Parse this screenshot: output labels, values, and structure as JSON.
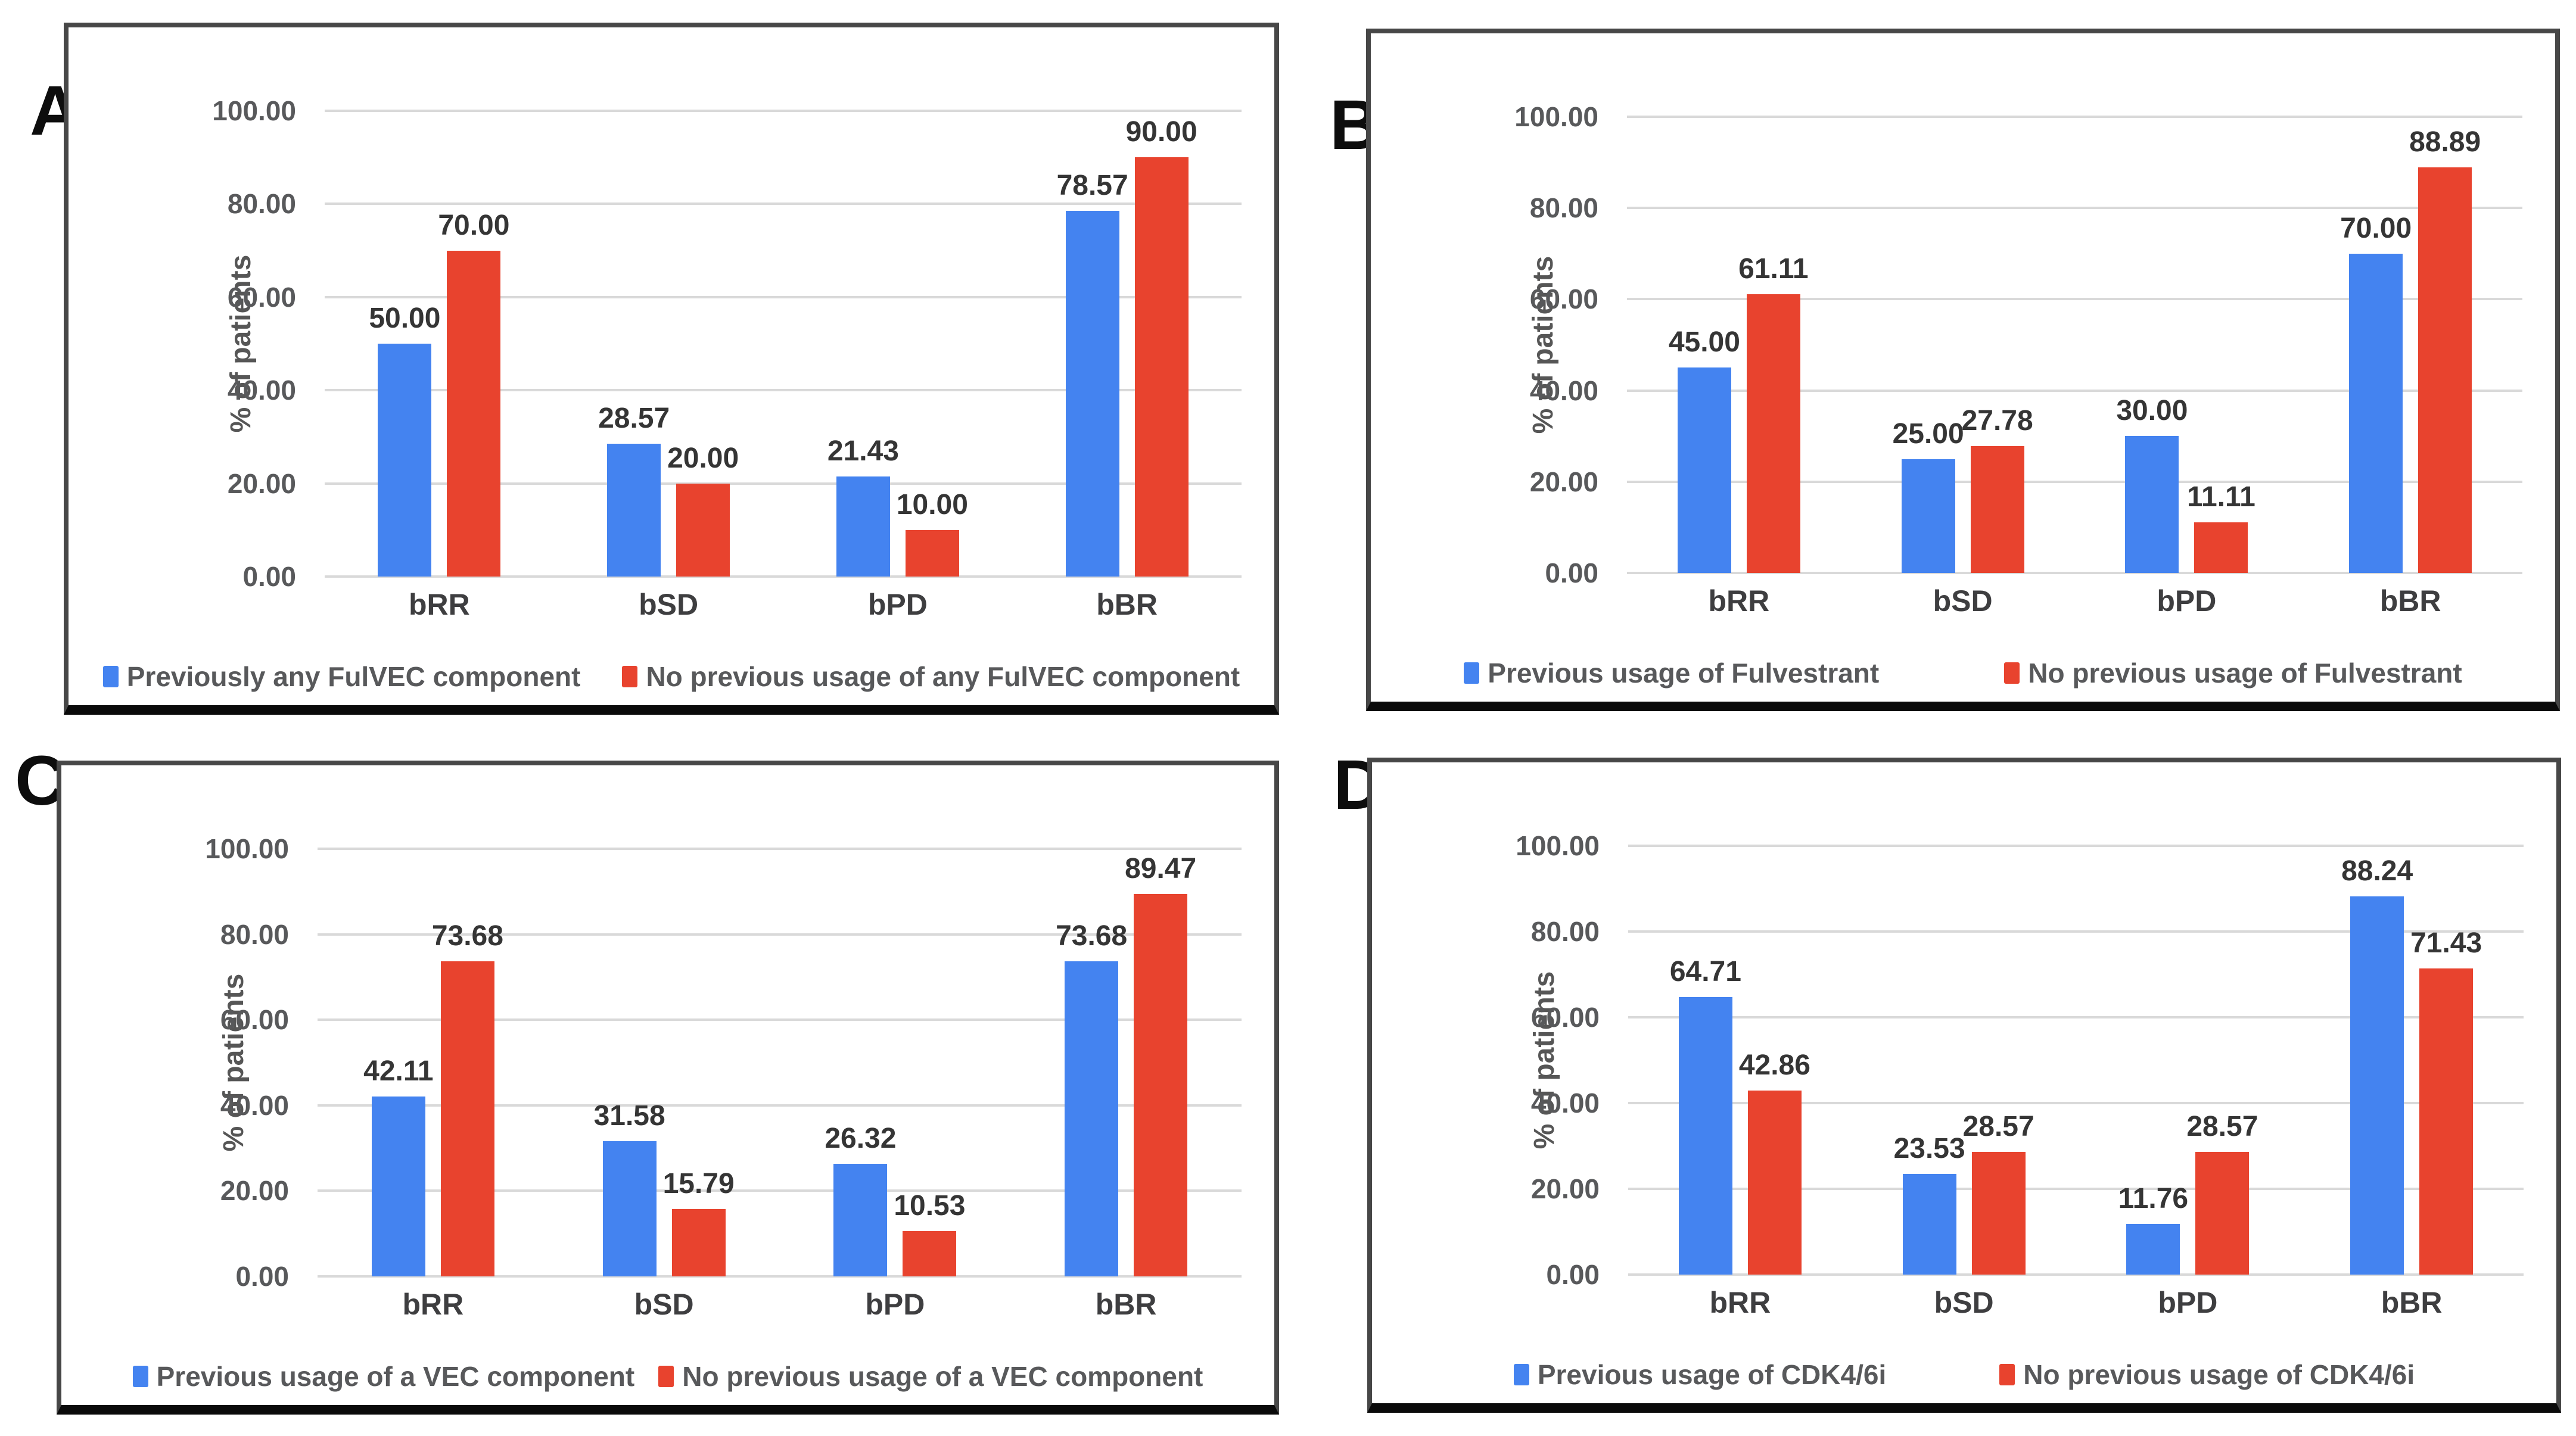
{
  "figure": {
    "panels": [
      "A.",
      "B.",
      "C.",
      "D."
    ]
  },
  "chart_data": [
    {
      "panel": "A.",
      "type": "bar",
      "categories": [
        "bRR",
        "bSD",
        "bPD",
        "bBR"
      ],
      "series": [
        {
          "name": "Previously any FulVEC component",
          "color": "#4483F0",
          "values": [
            50.0,
            28.57,
            21.43,
            78.57
          ]
        },
        {
          "name": "No previous usage of any FulVEC component",
          "color": "#E8432E",
          "values": [
            70.0,
            20.0,
            10.0,
            90.0
          ]
        }
      ],
      "xlabel": "",
      "ylabel": "% of patients",
      "ylim": [
        0,
        100
      ],
      "yticks": [
        "0.00",
        "20.00",
        "40.00",
        "60.00",
        "80.00",
        "100.00"
      ],
      "grid": true,
      "legend_position": "bottom",
      "value_labels": true
    },
    {
      "panel": "B.",
      "type": "bar",
      "categories": [
        "bRR",
        "bSD",
        "bPD",
        "bBR"
      ],
      "series": [
        {
          "name": "Previous usage of Fulvestrant",
          "color": "#4483F0",
          "values": [
            45.0,
            25.0,
            30.0,
            70.0
          ]
        },
        {
          "name": "No previous usage of Fulvestrant",
          "color": "#E8432E",
          "values": [
            61.11,
            27.78,
            11.11,
            88.89
          ]
        }
      ],
      "xlabel": "",
      "ylabel": "% of patients",
      "ylim": [
        0,
        100
      ],
      "yticks": [
        "0.00",
        "20.00",
        "40.00",
        "60.00",
        "80.00",
        "100.00"
      ],
      "grid": true,
      "legend_position": "bottom",
      "value_labels": true
    },
    {
      "panel": "C.",
      "type": "bar",
      "categories": [
        "bRR",
        "bSD",
        "bPD",
        "bBR"
      ],
      "series": [
        {
          "name": "Previous usage of a VEC component",
          "color": "#4483F0",
          "values": [
            42.11,
            31.58,
            26.32,
            73.68
          ]
        },
        {
          "name": "No previous usage of a VEC component",
          "color": "#E8432E",
          "values": [
            73.68,
            15.79,
            10.53,
            89.47
          ]
        }
      ],
      "xlabel": "",
      "ylabel": "% of patients",
      "ylim": [
        0,
        100
      ],
      "yticks": [
        "0.00",
        "20.00",
        "40.00",
        "60.00",
        "80.00",
        "100.00"
      ],
      "grid": true,
      "legend_position": "bottom",
      "value_labels": true
    },
    {
      "panel": "D.",
      "type": "bar",
      "categories": [
        "bRR",
        "bSD",
        "bPD",
        "bBR"
      ],
      "series": [
        {
          "name": "Previous usage of CDK4/6i",
          "color": "#4483F0",
          "values": [
            64.71,
            23.53,
            11.76,
            88.24
          ]
        },
        {
          "name": "No previous usage of CDK4/6i",
          "color": "#E8432E",
          "values": [
            42.86,
            28.57,
            28.57,
            71.43
          ]
        }
      ],
      "xlabel": "",
      "ylabel": "% of patients",
      "ylim": [
        0,
        100
      ],
      "yticks": [
        "0.00",
        "20.00",
        "40.00",
        "60.00",
        "80.00",
        "100.00"
      ],
      "grid": true,
      "legend_position": "bottom",
      "value_labels": true
    }
  ],
  "colors": {
    "series_blue": "#4483F0",
    "series_red": "#E8432E",
    "gridline": "#D9D9D9",
    "tick_label": "#58595B",
    "value_label": "#353535",
    "frame_border": "#474747",
    "frame_border_bottom": "#0A0A0A"
  }
}
